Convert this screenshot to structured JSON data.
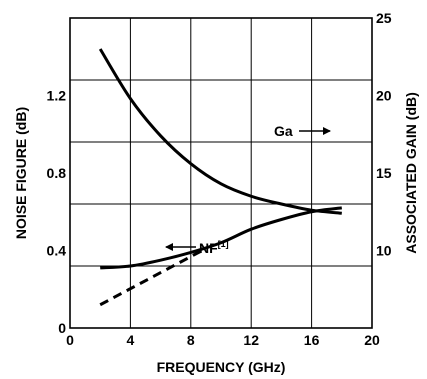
{
  "chart_data": {
    "type": "line",
    "xlabel": "FREQUENCY (GHz)",
    "ylabel_left": "NOISE FIGURE (dB)",
    "ylabel_right": "ASSOCIATED GAIN (dB)",
    "xlim": [
      0,
      20
    ],
    "ylim_left": [
      0,
      1.6
    ],
    "ylim_right": [
      5,
      25
    ],
    "x_ticks": [
      "0",
      "4",
      "8",
      "12",
      "16",
      "20"
    ],
    "y_left_ticks": [
      "0",
      "0.4",
      "0.8",
      "1.2"
    ],
    "y_right_ticks": [
      "10",
      "15",
      "20",
      "25"
    ],
    "grid": true,
    "series": [
      {
        "name": "Ga",
        "axis": "right",
        "style": "solid",
        "x": [
          2,
          4,
          6,
          8,
          10,
          12,
          14,
          16,
          18
        ],
        "y": [
          23.0,
          19.8,
          17.4,
          15.6,
          14.3,
          13.5,
          13.0,
          12.6,
          12.4
        ]
      },
      {
        "name": "NF",
        "axis": "left",
        "style": "solid",
        "x": [
          2,
          4,
          6,
          8,
          10,
          12,
          14,
          16,
          18
        ],
        "y": [
          0.31,
          0.32,
          0.35,
          0.39,
          0.44,
          0.51,
          0.56,
          0.6,
          0.62
        ]
      },
      {
        "name": "NF",
        "axis": "left",
        "style": "dashed",
        "x": [
          2,
          9
        ],
        "y": [
          0.12,
          0.41
        ]
      }
    ],
    "annotations": {
      "ga_label": "Ga",
      "nf_label": "NF",
      "nf_sup": "[1]"
    }
  }
}
